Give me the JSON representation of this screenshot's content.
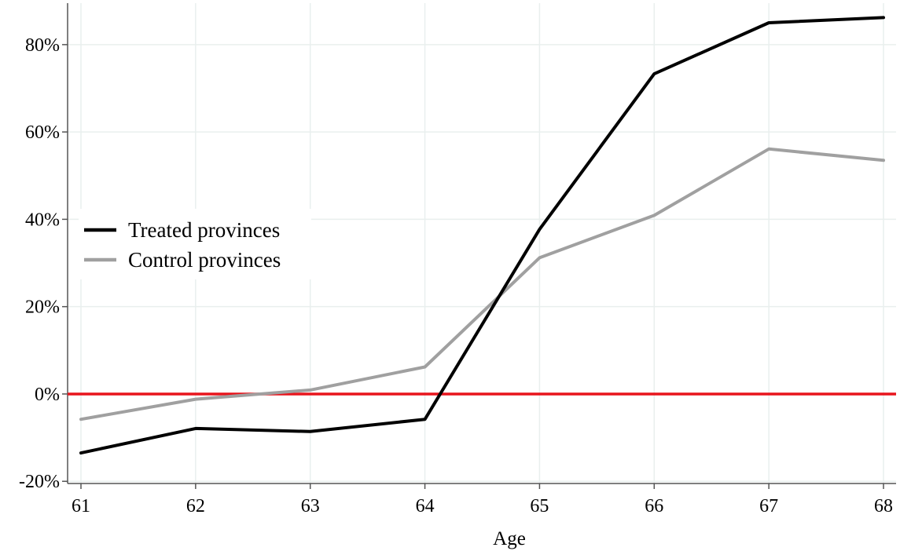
{
  "chart_data": {
    "type": "line",
    "title": "",
    "xlabel": "Age",
    "ylabel": "",
    "x": [
      61,
      62,
      63,
      64,
      65,
      66,
      67,
      68
    ],
    "x_tick_labels": [
      "61",
      "62",
      "63",
      "64",
      "65",
      "66",
      "67",
      "68"
    ],
    "xlim": [
      61,
      68
    ],
    "y_ticks": [
      -20,
      0,
      20,
      40,
      60,
      80
    ],
    "y_tick_labels": [
      "-20%",
      "0%",
      "20%",
      "40%",
      "60%",
      "80%"
    ],
    "ylim": [
      -20.5,
      89.5
    ],
    "y_unit": "percent",
    "grid": true,
    "legend_position": "left",
    "series": [
      {
        "name": "Treated provinces",
        "color": "#000000",
        "values": [
          -13.5,
          -7.9,
          -8.6,
          -5.8,
          37.7,
          73.3,
          85.0,
          86.2
        ]
      },
      {
        "name": "Control provinces",
        "color": "#a0a0a0",
        "values": [
          -5.8,
          -1.2,
          0.9,
          6.2,
          31.2,
          40.9,
          56.1,
          53.5
        ]
      }
    ],
    "reference_lines": [
      {
        "axis": "y",
        "value": 0,
        "color": "#e8141c"
      }
    ],
    "grid_color": "#e9efee",
    "axis_color": "#555555"
  }
}
